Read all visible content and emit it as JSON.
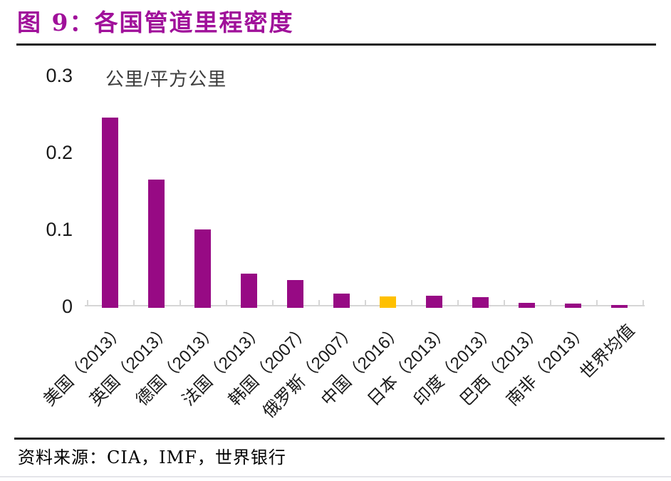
{
  "header": {
    "title": "图 9：各国管道里程密度"
  },
  "footer": {
    "source": "资料来源：CIA，IMF，世界银行"
  },
  "colors": {
    "title": "#A0109A",
    "bar": "#970A84",
    "bar_highlight": "#FFC000",
    "axis": "#D6D6D6",
    "divider": "#1F1F1F",
    "label_text": "#1A1A1A",
    "bottom_rule": "#E4E4E9"
  },
  "chart_data": {
    "type": "bar",
    "title": "各国管道里程密度",
    "unit_label": "公里/平方公里",
    "xlabel": "",
    "ylabel": "公里/平方公里",
    "categories": [
      "美国（2013）",
      "英国（2013）",
      "德国（2013）",
      "法国（2013）",
      "韩国（2007）",
      "俄罗斯（2007）",
      "中国（2016）",
      "日本（2013）",
      "印度（2013）",
      "巴西（2013）",
      "南非（2013）",
      "世界均值"
    ],
    "values": [
      0.245,
      0.165,
      0.1,
      0.043,
      0.034,
      0.017,
      0.013,
      0.014,
      0.012,
      0.005,
      0.004,
      0.002
    ],
    "highlight_index": 6,
    "highlight_category": "中国（2016）",
    "ytick_values": [
      0,
      0.1,
      0.2,
      0.3
    ],
    "ytick_labels": [
      "0",
      "0.1",
      "0.2",
      "0.3"
    ],
    "ylim": [
      0,
      0.3
    ],
    "grid": false,
    "legend_position": "none"
  }
}
